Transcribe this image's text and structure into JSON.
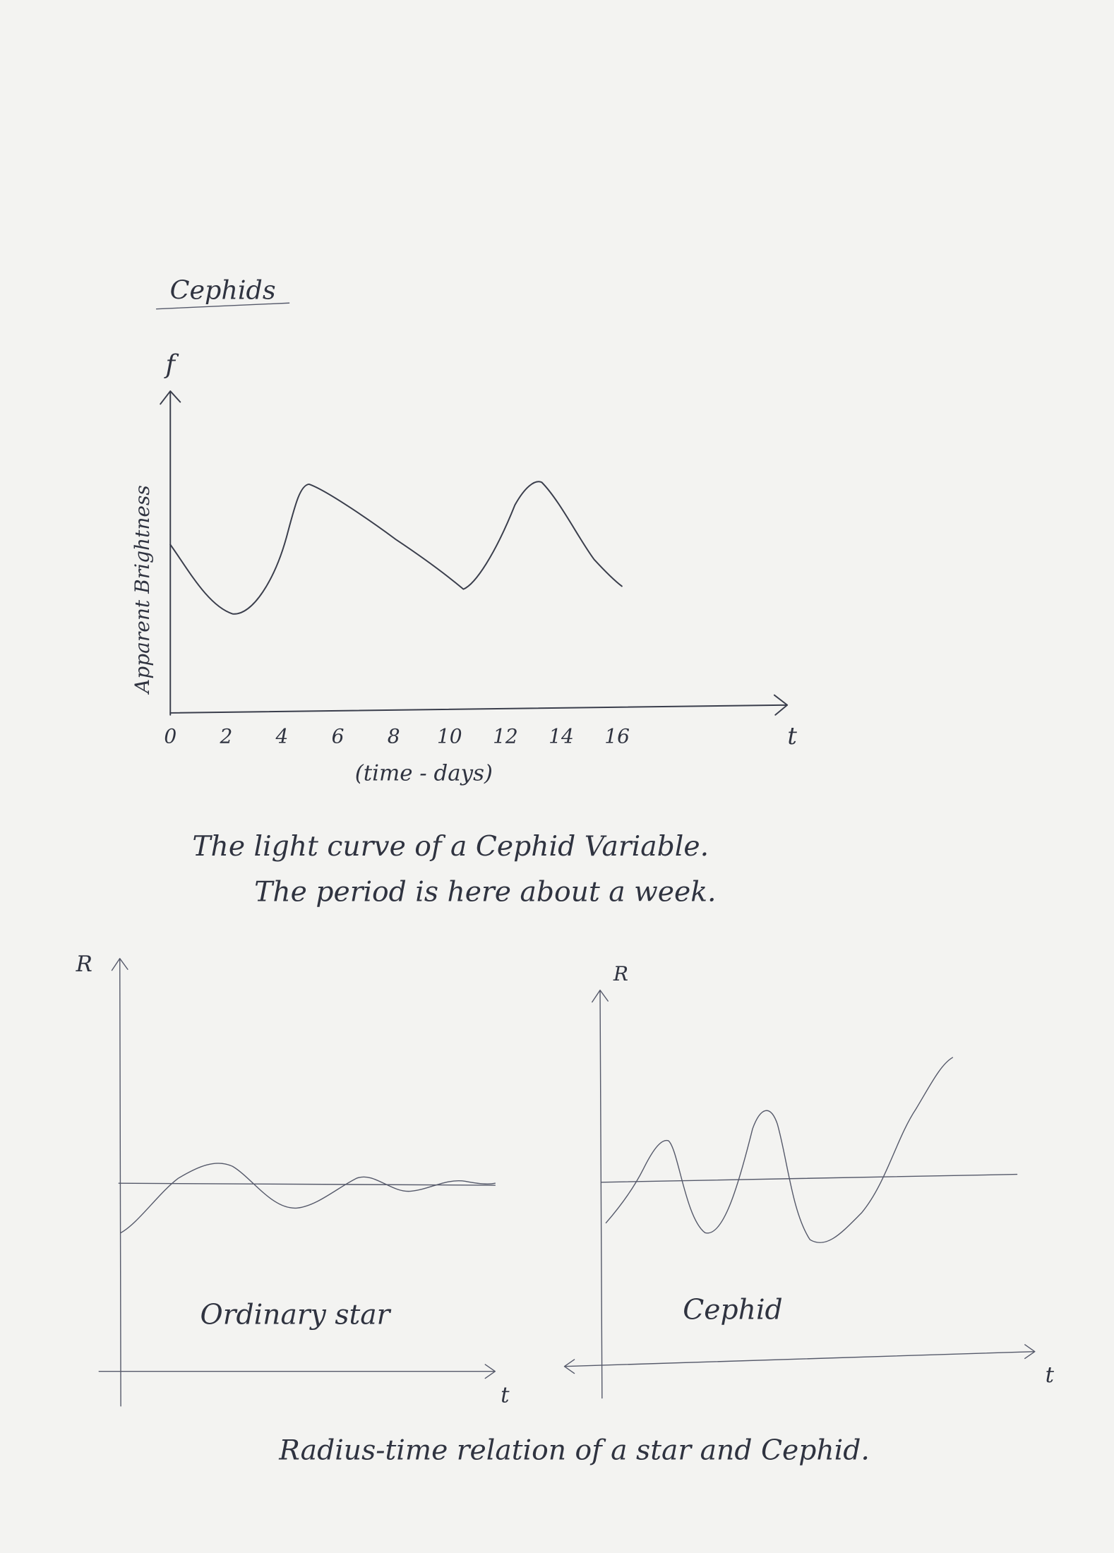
{
  "title": "Cephids",
  "light_curve": {
    "y_symbol": "f",
    "y_label": "Apparent Brightness",
    "x_ticks": [
      0,
      2,
      4,
      6,
      8,
      10,
      12,
      14,
      16
    ],
    "x_symbol": "t",
    "x_label": "(time - days)"
  },
  "caption": {
    "lines": [
      "The light curve of a Cephid Variable.",
      "The period is here about a week."
    ]
  },
  "ordinary_star": {
    "y_symbol": "R",
    "label": "Ordinary star",
    "x_symbol": "t"
  },
  "cephid": {
    "y_symbol": "R",
    "label": "Cephid",
    "x_symbol": "t"
  },
  "bottom_caption": "Radius-time relation of a star and Cephid."
}
